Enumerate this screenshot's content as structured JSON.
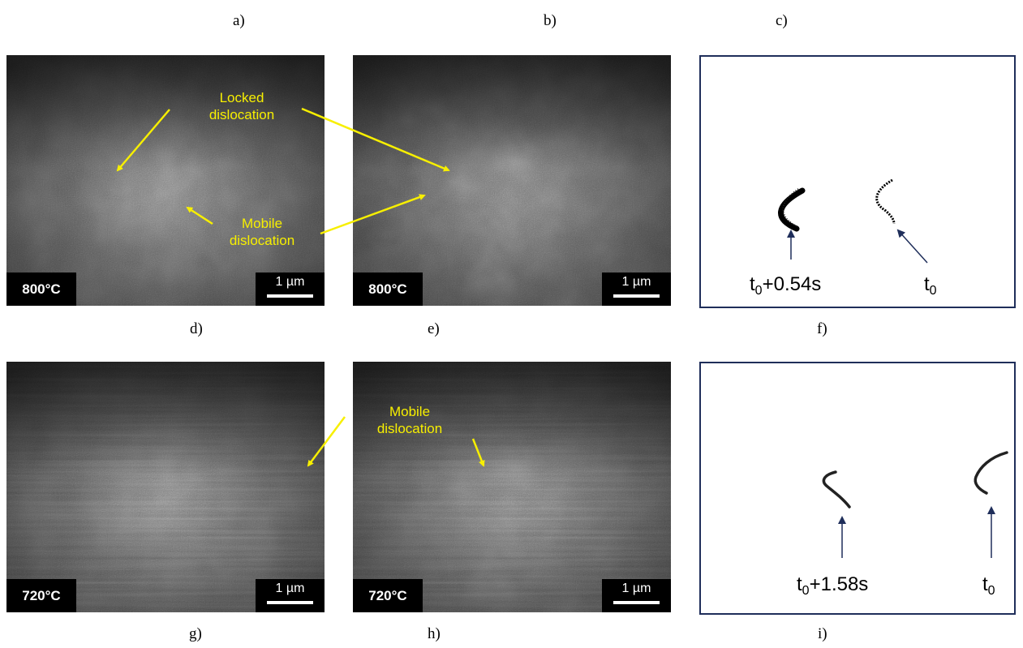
{
  "labels": {
    "a": "a)",
    "b": "b)",
    "c": "c)",
    "d": "d)",
    "e": "e)",
    "f": "f)",
    "g": "g)",
    "h": "h)",
    "i": "i)"
  },
  "panels": {
    "top_left": {
      "temperature": "800°C",
      "scale": "1 µm"
    },
    "top_mid": {
      "temperature": "800°C",
      "scale": "1 µm"
    },
    "bot_left": {
      "temperature": "720°C",
      "scale": "1 µm"
    },
    "bot_mid": {
      "temperature": "720°C",
      "scale": "1 µm"
    }
  },
  "annotations": {
    "locked_line1": "Locked",
    "locked_line2": "dislocation",
    "mobile_line1": "Mobile",
    "mobile_line2": "dislocation",
    "mobile2_line1": "Mobile",
    "mobile2_line2": "dislocation"
  },
  "traces_top": {
    "left_prefix": "t",
    "left_sub": "0",
    "left_suffix": "+0.54s",
    "right_prefix": "t",
    "right_sub": "0"
  },
  "traces_bottom": {
    "left_prefix": "t",
    "left_sub": "0",
    "left_suffix": "+1.58s",
    "right_prefix": "t",
    "right_sub": "0"
  },
  "colors": {
    "annotation": "#f7ef00",
    "trace_frame": "#1f2e5a",
    "trace_arrow": "#1f2e5a"
  }
}
